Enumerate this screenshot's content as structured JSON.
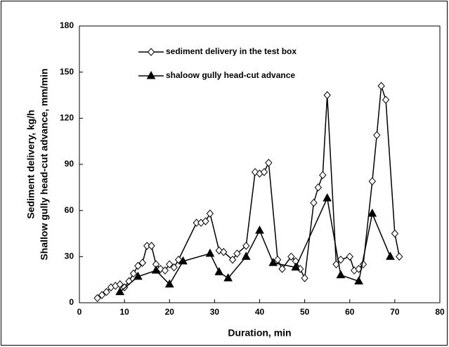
{
  "chart_data": {
    "type": "line",
    "xlabel": "Duration, min",
    "ylabel": [
      "Sediment delivery, kg/h",
      "Shallow gully head-cut advance, mm/min"
    ],
    "xlim": [
      0,
      80
    ],
    "xticks": [
      0,
      10,
      20,
      30,
      40,
      50,
      60,
      70,
      80
    ],
    "ylim": [
      0,
      180
    ],
    "yticks": [
      0,
      30,
      60,
      90,
      120,
      150,
      180
    ],
    "legend": "upper left",
    "series": [
      {
        "name": "sediment delivery in the test box",
        "color": "#000000",
        "marker": "diamond",
        "x": [
          4,
          5,
          6,
          7,
          8,
          9,
          10,
          11,
          12,
          13,
          14,
          15,
          16,
          17,
          18,
          19,
          20,
          21,
          22,
          26,
          27,
          28,
          29,
          31,
          32,
          34,
          35,
          37,
          39,
          40,
          41,
          42,
          44,
          45,
          47,
          48,
          49,
          50,
          52,
          53,
          54,
          55,
          57,
          58,
          60,
          61,
          62,
          63,
          65,
          66,
          67,
          68,
          70,
          71
        ],
        "values": [
          3,
          5,
          7,
          10,
          11,
          12,
          10,
          14,
          19,
          24,
          26,
          37,
          37,
          25,
          22,
          21,
          25,
          23,
          28,
          52,
          52,
          53,
          58,
          34,
          33,
          28,
          32,
          37,
          85,
          84,
          85,
          91,
          28,
          22,
          30,
          27,
          22,
          16,
          65,
          75,
          83,
          135,
          25,
          28,
          30,
          21,
          22,
          25,
          79,
          109,
          141,
          132,
          45,
          30
        ]
      },
      {
        "name": "shaloow gully head-cut advance",
        "color": "#000000",
        "marker": "triangle",
        "x": [
          9,
          13,
          17,
          20,
          23,
          29,
          31,
          33,
          37,
          40,
          43,
          48,
          55,
          58,
          62,
          65,
          69
        ],
        "values": [
          7,
          17,
          21,
          12,
          27,
          32,
          20,
          16,
          30,
          47,
          26,
          23,
          68,
          18,
          14,
          58,
          30
        ]
      }
    ]
  }
}
